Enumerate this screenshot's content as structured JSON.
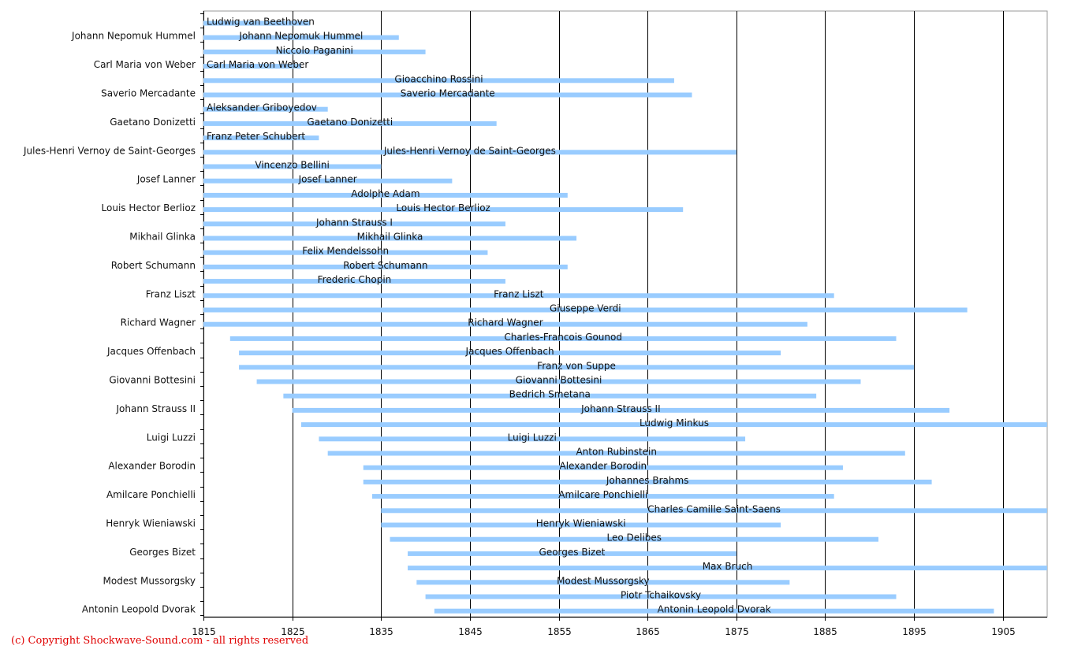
{
  "chart_data": {
    "type": "bar",
    "orientation": "horizontal-range",
    "bar_color": "#99ccff",
    "grid": "vertical",
    "xlim": [
      1815,
      1910
    ],
    "xticks": [
      1815,
      1825,
      1835,
      1845,
      1855,
      1865,
      1875,
      1885,
      1895,
      1905
    ],
    "series": [
      {
        "name": "Ludwig van Beethoven",
        "start": 1815,
        "end": 1827,
        "ylabel": ""
      },
      {
        "name": "Johann Nepomuk Hummel",
        "start": 1815,
        "end": 1837,
        "ylabel": "Johann Nepomuk Hummel"
      },
      {
        "name": "Niccolo Paganini",
        "start": 1815,
        "end": 1840,
        "ylabel": ""
      },
      {
        "name": "Carl Maria von Weber",
        "start": 1815,
        "end": 1826,
        "ylabel": "Carl Maria von Weber"
      },
      {
        "name": "Gioacchino Rossini",
        "start": 1815,
        "end": 1868,
        "ylabel": ""
      },
      {
        "name": "Saverio Mercadante",
        "start": 1815,
        "end": 1870,
        "ylabel": "Saverio Mercadante"
      },
      {
        "name": "Aleksander Griboyedov",
        "start": 1815,
        "end": 1829,
        "ylabel": ""
      },
      {
        "name": "Gaetano Donizetti",
        "start": 1815,
        "end": 1848,
        "ylabel": "Gaetano Donizetti"
      },
      {
        "name": "Franz Peter Schubert",
        "start": 1815,
        "end": 1828,
        "ylabel": ""
      },
      {
        "name": "Jules-Henri Vernoy de Saint-Georges",
        "start": 1815,
        "end": 1875,
        "ylabel": "Jules-Henri Vernoy de Saint-Georges"
      },
      {
        "name": "Vincenzo Bellini",
        "start": 1815,
        "end": 1835,
        "ylabel": ""
      },
      {
        "name": "Josef Lanner",
        "start": 1815,
        "end": 1843,
        "ylabel": "Josef Lanner"
      },
      {
        "name": "Adolphe Adam",
        "start": 1815,
        "end": 1856,
        "ylabel": ""
      },
      {
        "name": "Louis Hector Berlioz",
        "start": 1815,
        "end": 1869,
        "ylabel": "Louis Hector Berlioz"
      },
      {
        "name": "Johann Strauss I",
        "start": 1815,
        "end": 1849,
        "ylabel": ""
      },
      {
        "name": "Mikhail Glinka",
        "start": 1815,
        "end": 1857,
        "ylabel": "Mikhail Glinka"
      },
      {
        "name": "Felix Mendelssohn",
        "start": 1815,
        "end": 1847,
        "ylabel": ""
      },
      {
        "name": "Robert Schumann",
        "start": 1815,
        "end": 1856,
        "ylabel": "Robert Schumann"
      },
      {
        "name": "Frederic Chopin",
        "start": 1815,
        "end": 1849,
        "ylabel": ""
      },
      {
        "name": "Franz Liszt",
        "start": 1815,
        "end": 1886,
        "ylabel": "Franz Liszt"
      },
      {
        "name": "Giuseppe Verdi",
        "start": 1815,
        "end": 1901,
        "ylabel": ""
      },
      {
        "name": "Richard Wagner",
        "start": 1815,
        "end": 1883,
        "ylabel": "Richard Wagner"
      },
      {
        "name": "Charles-Francois Gounod",
        "start": 1818,
        "end": 1893,
        "ylabel": ""
      },
      {
        "name": "Jacques Offenbach",
        "start": 1819,
        "end": 1880,
        "ylabel": "Jacques Offenbach"
      },
      {
        "name": "Franz von Suppe",
        "start": 1819,
        "end": 1895,
        "ylabel": ""
      },
      {
        "name": "Giovanni Bottesini",
        "start": 1821,
        "end": 1889,
        "ylabel": "Giovanni Bottesini"
      },
      {
        "name": "Bedrich Smetana",
        "start": 1824,
        "end": 1884,
        "ylabel": ""
      },
      {
        "name": "Johann Strauss II",
        "start": 1825,
        "end": 1899,
        "ylabel": "Johann Strauss II"
      },
      {
        "name": "Ludwig Minkus",
        "start": 1826,
        "end": 1910,
        "ylabel": ""
      },
      {
        "name": "Luigi Luzzi",
        "start": 1828,
        "end": 1876,
        "ylabel": "Luigi Luzzi"
      },
      {
        "name": "Anton Rubinstein",
        "start": 1829,
        "end": 1894,
        "ylabel": ""
      },
      {
        "name": "Alexander Borodin",
        "start": 1833,
        "end": 1887,
        "ylabel": "Alexander Borodin"
      },
      {
        "name": "Johannes Brahms",
        "start": 1833,
        "end": 1897,
        "ylabel": ""
      },
      {
        "name": "Amilcare Ponchielli",
        "start": 1834,
        "end": 1886,
        "ylabel": "Amilcare Ponchielli"
      },
      {
        "name": "Charles Camille Saint-Saens",
        "start": 1835,
        "end": 1910,
        "ylabel": ""
      },
      {
        "name": "Henryk Wieniawski",
        "start": 1835,
        "end": 1880,
        "ylabel": "Henryk Wieniawski"
      },
      {
        "name": "Leo Delibes",
        "start": 1836,
        "end": 1891,
        "ylabel": ""
      },
      {
        "name": "Georges Bizet",
        "start": 1838,
        "end": 1875,
        "ylabel": "Georges Bizet"
      },
      {
        "name": "Max Bruch",
        "start": 1838,
        "end": 1910,
        "ylabel": ""
      },
      {
        "name": "Modest Mussorgsky",
        "start": 1839,
        "end": 1881,
        "ylabel": "Modest Mussorgsky"
      },
      {
        "name": "Piotr Tchaikovsky",
        "start": 1840,
        "end": 1893,
        "ylabel": ""
      },
      {
        "name": "Antonin Leopold Dvorak",
        "start": 1841,
        "end": 1904,
        "ylabel": "Antonin Leopold Dvorak"
      }
    ]
  },
  "copyright": "(c) Copyright Shockwave-Sound.com - all rights reserved"
}
